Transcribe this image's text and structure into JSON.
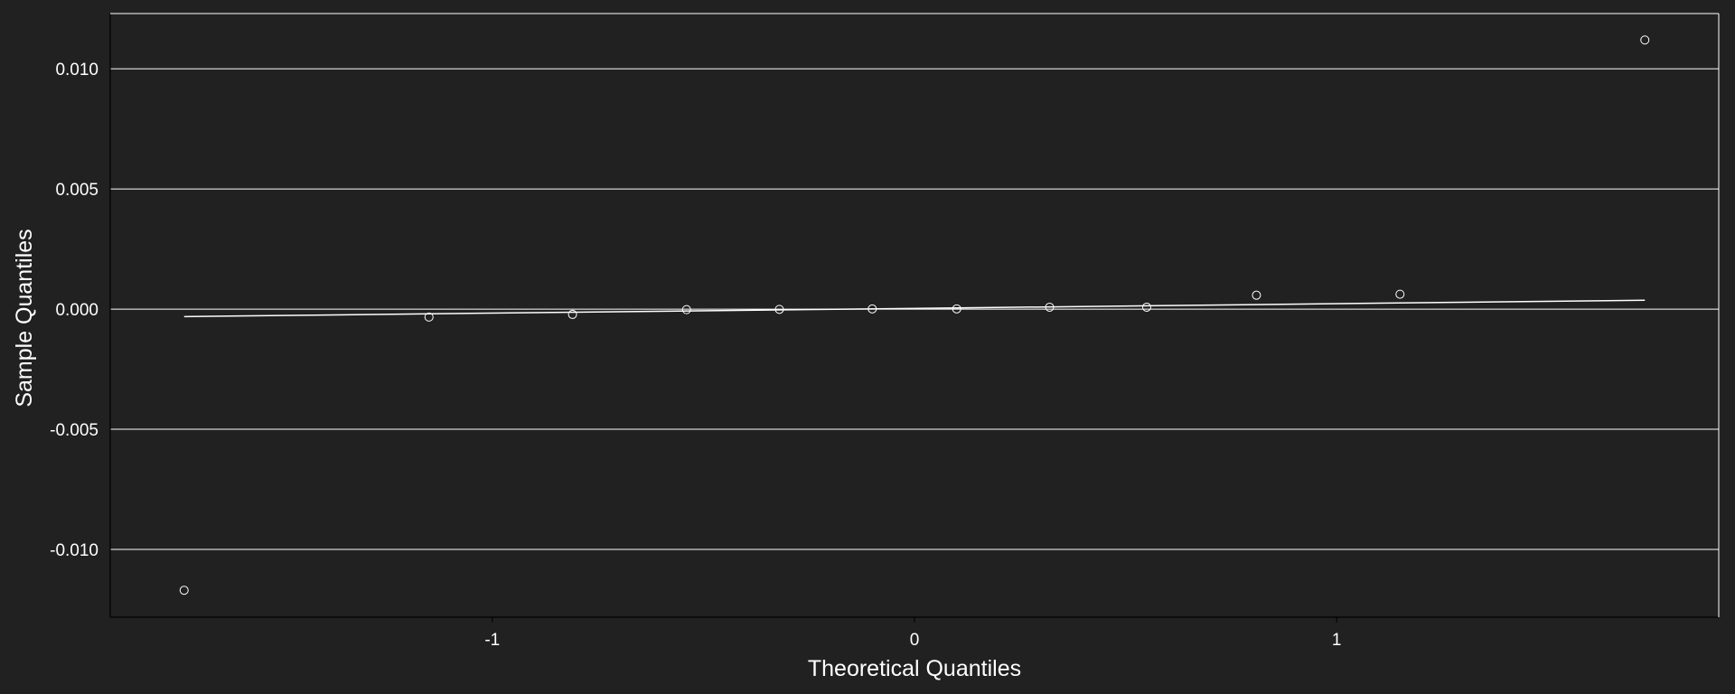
{
  "chart_data": {
    "type": "scatter",
    "title": "",
    "xlabel": "Theoretical Quantiles",
    "ylabel": "Sample Quantiles",
    "xlim": [
      -1.905,
      1.905
    ],
    "ylim": [
      -0.01282,
      0.0123
    ],
    "x_ticks": [
      -1,
      0,
      1
    ],
    "x_tick_labels": [
      "-1",
      "0",
      "1"
    ],
    "y_ticks": [
      -0.01,
      -0.005,
      0.0,
      0.005,
      0.01
    ],
    "y_tick_labels": [
      "-0.010",
      "-0.005",
      "0.000",
      "0.005",
      "0.010"
    ],
    "grid": "horizontal",
    "background_color": "#212121",
    "foreground_color": "#ffffff",
    "points": {
      "x": [
        -1.73,
        -1.15,
        -0.81,
        -0.54,
        -0.32,
        -0.1,
        0.1,
        0.32,
        0.55,
        0.81,
        1.15,
        1.73
      ],
      "y": [
        -0.0117,
        -0.00033,
        -0.00022,
        -2e-05,
        -1e-05,
        1e-05,
        1e-05,
        8e-05,
        8e-05,
        0.00058,
        0.00062,
        0.0112
      ]
    },
    "reference_line": {
      "x": [
        -1.73,
        1.73
      ],
      "y": [
        -0.00031,
        0.00037
      ]
    }
  }
}
